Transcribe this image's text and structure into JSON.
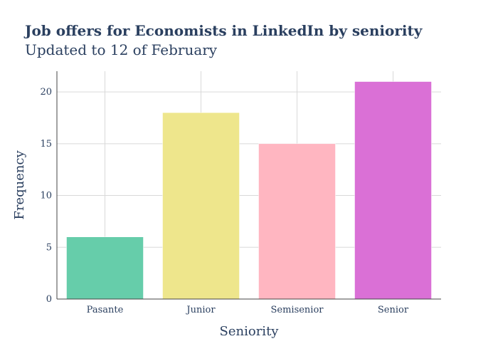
{
  "chart_data": {
    "type": "bar",
    "title": "Job offers for Economists in LinkedIn by seniority",
    "subtitle": "Updated to 12 of February",
    "xlabel": "Seniority",
    "ylabel": "Frequency",
    "categories": [
      "Pasante",
      "Junior",
      "Semisenior",
      "Senior"
    ],
    "values": [
      6,
      18,
      15,
      21
    ],
    "colors": [
      "#66cdaa",
      "#eee68c",
      "#ffb6c1",
      "#da70d6"
    ],
    "ylim": [
      0,
      22
    ],
    "yticks": [
      0,
      5,
      10,
      15,
      20
    ],
    "grid": true,
    "legend": "none"
  }
}
